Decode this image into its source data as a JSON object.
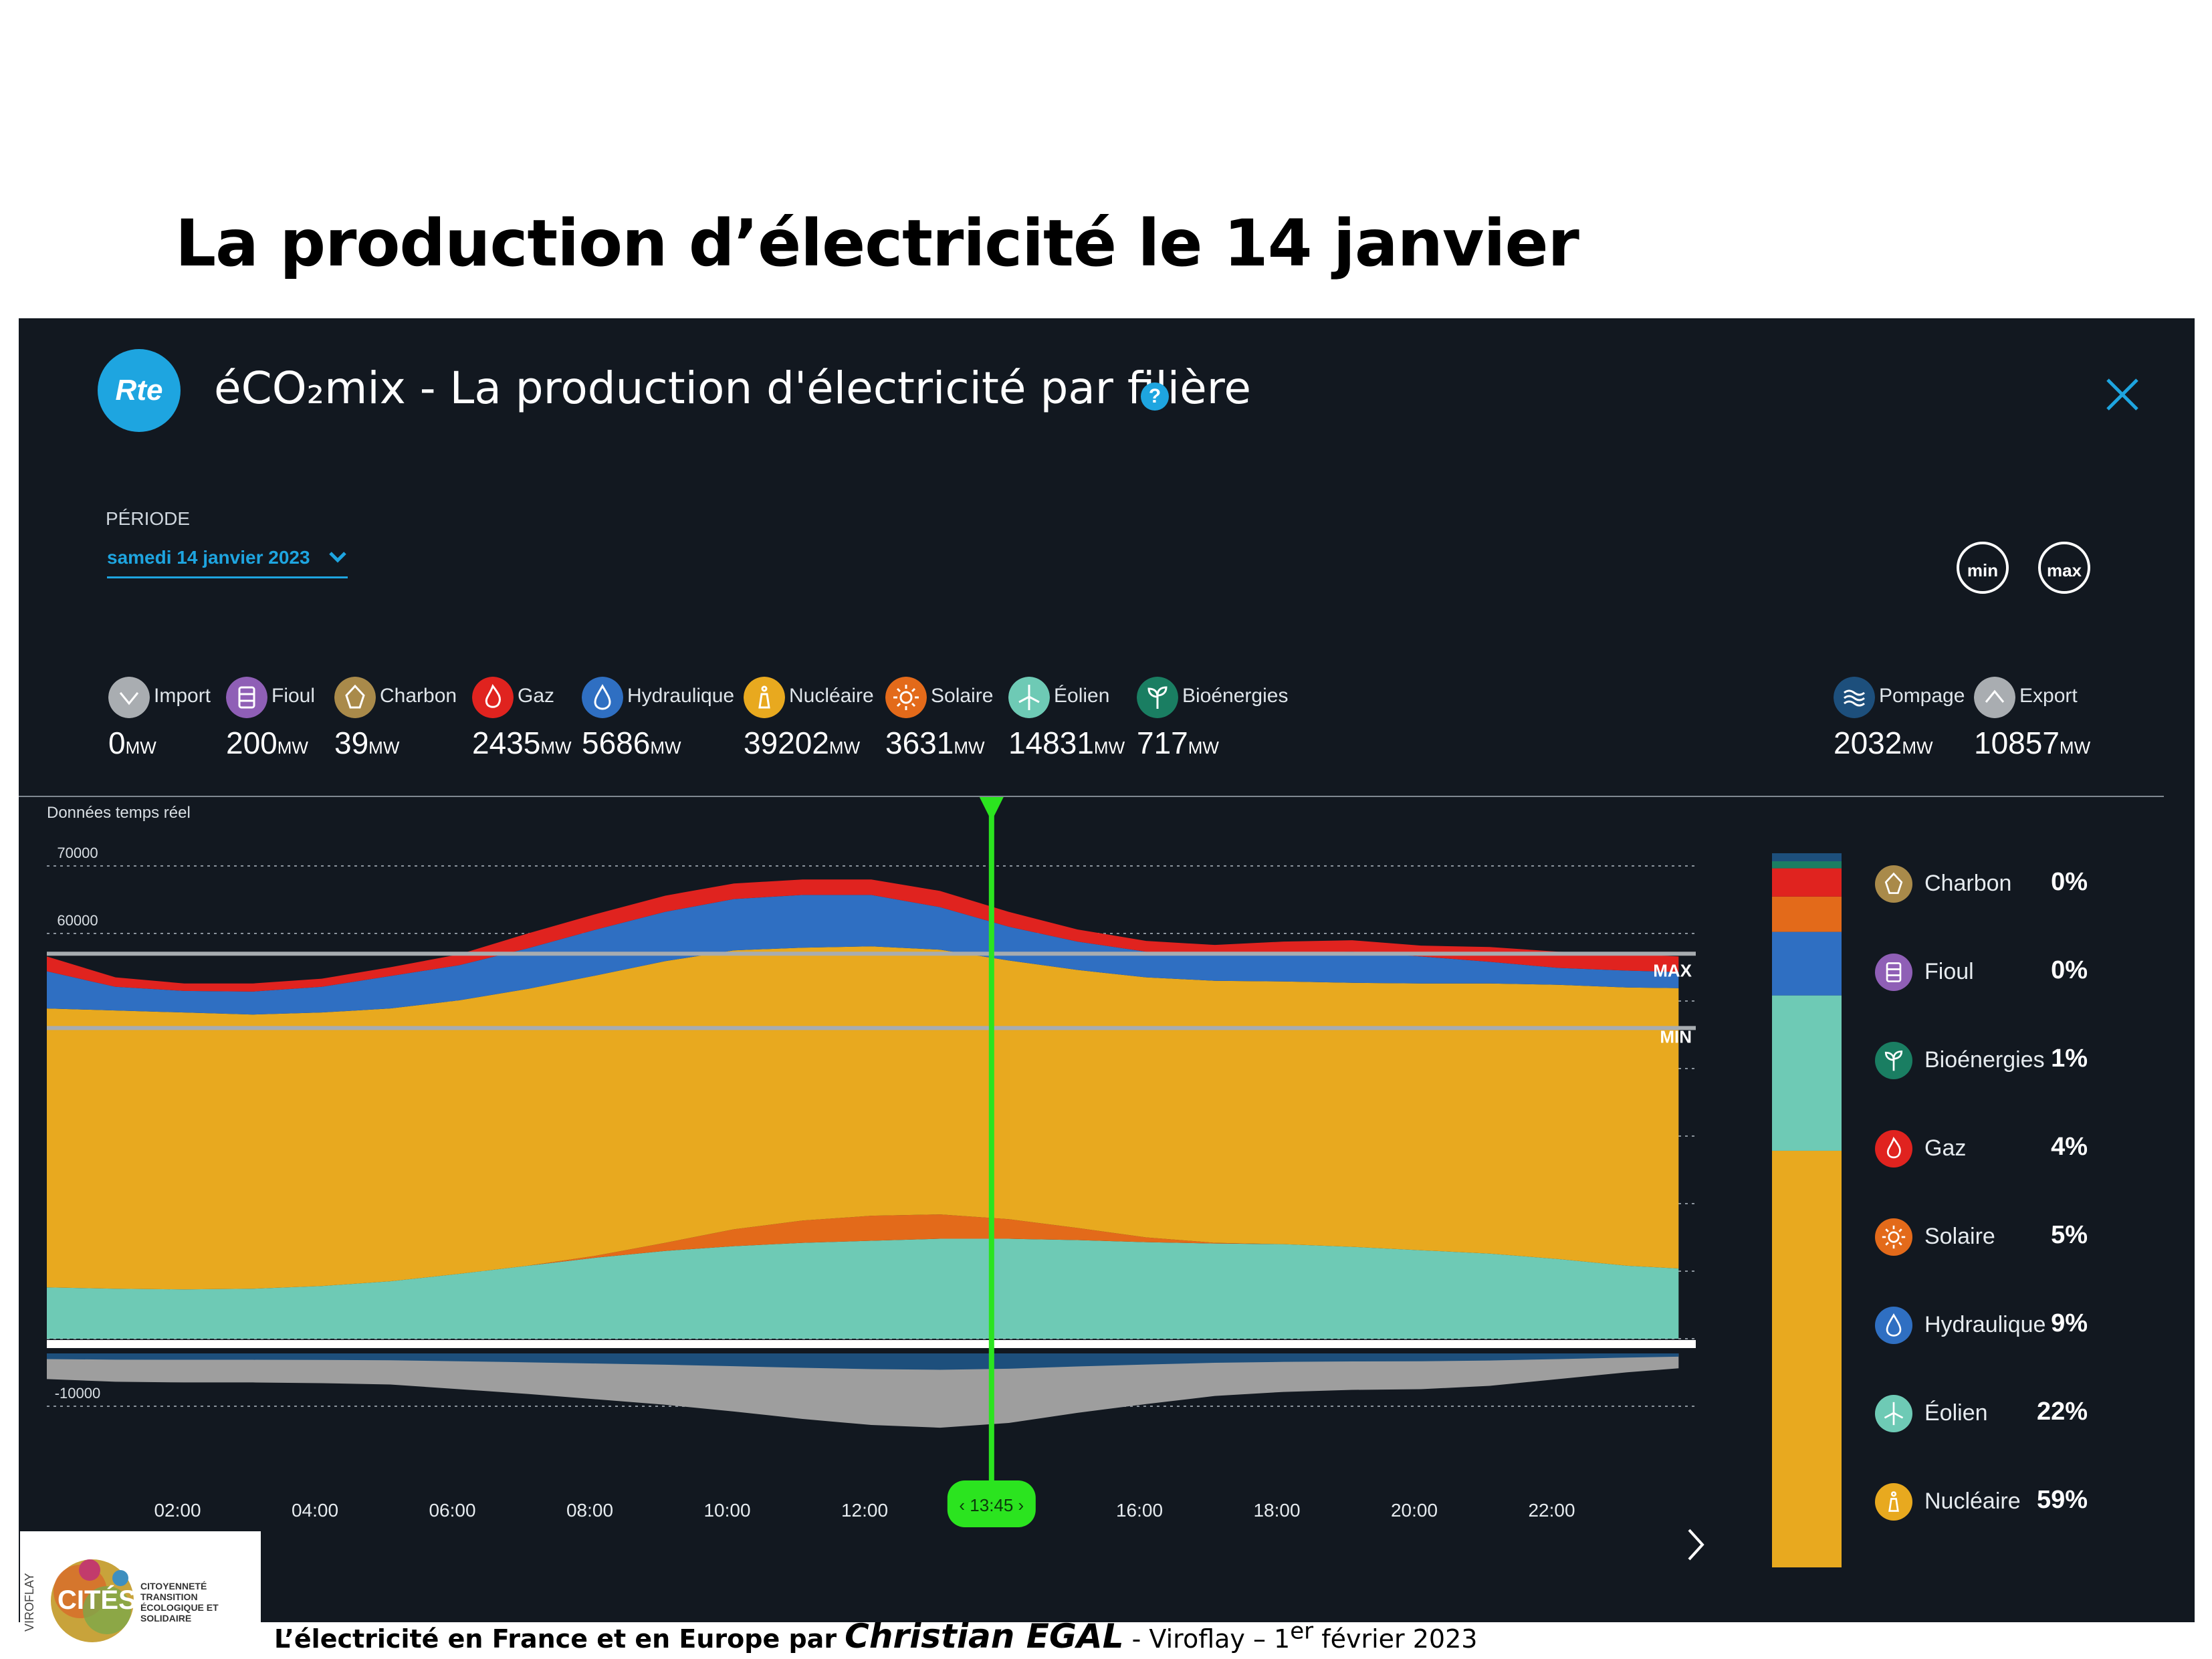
{
  "slide": {
    "title": "La production d’électricité le 14 janvier"
  },
  "app": {
    "logo_text": "Rte",
    "title": "éCO₂mix - La production d'électricité par filière",
    "help": "?"
  },
  "period": {
    "label": "PÉRIODE",
    "value": "samedi 14 janvier 2023"
  },
  "buttons": {
    "min": "min",
    "max": "max"
  },
  "legend": [
    {
      "id": "import",
      "name": "Import",
      "value": "0",
      "unit": "MW",
      "color": "#a9adb1",
      "icon": "chevron-down-icon"
    },
    {
      "id": "fioul",
      "name": "Fioul",
      "value": "200",
      "unit": "MW",
      "color": "#8f5fb6",
      "icon": "barrel-icon"
    },
    {
      "id": "charbon",
      "name": "Charbon",
      "value": "39",
      "unit": "MW",
      "color": "#a98a4a",
      "icon": "coal-icon"
    },
    {
      "id": "gaz",
      "name": "Gaz",
      "value": "2435",
      "unit": "MW",
      "color": "#e0231f",
      "icon": "flame-icon"
    },
    {
      "id": "hydraulique",
      "name": "Hydraulique",
      "value": "5686",
      "unit": "MW",
      "color": "#2f6fc2",
      "icon": "water-drop-icon"
    },
    {
      "id": "nucleaire",
      "name": "Nucléaire",
      "value": "39202",
      "unit": "MW",
      "color": "#e8a91f",
      "icon": "nuclear-plant-icon"
    },
    {
      "id": "solaire",
      "name": "Solaire",
      "value": "3631",
      "unit": "MW",
      "color": "#e36a1a",
      "icon": "sun-icon"
    },
    {
      "id": "eolien",
      "name": "Éolien",
      "value": "14831",
      "unit": "MW",
      "color": "#6ecab5",
      "icon": "wind-turbine-icon"
    },
    {
      "id": "bioenergies",
      "name": "Bioénergies",
      "value": "717",
      "unit": "MW",
      "color": "#1a7e62",
      "icon": "sprout-icon"
    }
  ],
  "legend_right": [
    {
      "id": "pompage",
      "name": "Pompage",
      "value": "2032",
      "unit": "MW",
      "color": "#1d4f7c",
      "icon": "waves-icon"
    },
    {
      "id": "export",
      "name": "Export",
      "value": "10857",
      "unit": "MW",
      "color": "#a9adb1",
      "icon": "chevron-up-icon"
    }
  ],
  "realtime_label": "Données temps réel",
  "cursor_time": "13:45",
  "max_label": "MAX",
  "min_label": "MIN",
  "chart_data": {
    "type": "area",
    "stacked": true,
    "x_unit": "hour",
    "x": [
      0,
      1,
      2,
      3,
      4,
      5,
      6,
      7,
      8,
      9,
      10,
      11,
      12,
      13,
      14,
      15,
      16,
      17,
      18,
      19,
      20,
      21,
      22,
      23,
      23.75
    ],
    "xticks": [
      "02:00",
      "04:00",
      "06:00",
      "08:00",
      "10:00",
      "12:00",
      "16:00",
      "18:00",
      "20:00",
      "22:00"
    ],
    "xtick_values": [
      2,
      4,
      6,
      8,
      10,
      12,
      16,
      18,
      20,
      22
    ],
    "yticks": [
      "70000",
      "60000",
      "50000",
      "40000",
      "30000",
      "20000",
      "10000",
      "0",
      "-10000"
    ],
    "ytick_values": [
      70000,
      60000,
      50000,
      40000,
      30000,
      20000,
      10000,
      0,
      -10000
    ],
    "ylim": [
      -13000,
      72000
    ],
    "max_line": 57000,
    "min_line": 46000,
    "series": [
      {
        "name": "Éolien",
        "color": "#6ecab5",
        "values": [
          7600,
          7400,
          7300,
          7400,
          7800,
          8500,
          9600,
          10800,
          12000,
          13000,
          13700,
          14200,
          14500,
          14800,
          14800,
          14600,
          14300,
          14100,
          14000,
          13600,
          13100,
          12600,
          11800,
          10800,
          10400
        ]
      },
      {
        "name": "Solaire",
        "color": "#e36a1a",
        "values": [
          0,
          0,
          0,
          0,
          0,
          0,
          0,
          0,
          300,
          1200,
          2500,
          3300,
          3700,
          3600,
          2900,
          1800,
          700,
          100,
          0,
          0,
          0,
          0,
          0,
          0,
          0
        ]
      },
      {
        "name": "Nucléaire",
        "color": "#e8a91f",
        "values": [
          41300,
          41200,
          41000,
          40600,
          40500,
          40400,
          40500,
          41000,
          41500,
          41700,
          41300,
          40400,
          39900,
          39200,
          38300,
          38200,
          38500,
          38800,
          38900,
          39100,
          39500,
          40000,
          40600,
          41200,
          41500
        ]
      },
      {
        "name": "Hydraulique",
        "color": "#2f6fc2",
        "values": [
          5500,
          3500,
          3200,
          3400,
          3800,
          4800,
          5200,
          6000,
          6800,
          7300,
          7600,
          7800,
          7600,
          6300,
          5000,
          4200,
          3800,
          3900,
          4200,
          4600,
          4000,
          3200,
          2500,
          2500,
          2400
        ]
      },
      {
        "name": "Gaz",
        "color": "#e0231f",
        "values": [
          2200,
          1400,
          1100,
          1200,
          1200,
          1300,
          1600,
          2200,
          2300,
          2400,
          2300,
          2300,
          2300,
          2400,
          2200,
          1800,
          1600,
          1400,
          1700,
          1700,
          1600,
          2200,
          2400,
          2500,
          2300
        ]
      },
      {
        "name": "Pompage et export",
        "color": "#9e9e9e",
        "values": [
          -3800,
          -4200,
          -4300,
          -4300,
          -4400,
          -4600,
          -5300,
          -6000,
          -6800,
          -7600,
          -8600,
          -9700,
          -10600,
          -11000,
          -10300,
          -8800,
          -7500,
          -6300,
          -5700,
          -5400,
          -5300,
          -4800,
          -3800,
          -2800,
          -2200
        ]
      }
    ],
    "mix_bar": [
      {
        "name": "Charbon",
        "pct": "0%",
        "color": "#a98a4a",
        "icon": "coal-icon"
      },
      {
        "name": "Fioul",
        "pct": "0%",
        "color": "#8f5fb6",
        "icon": "barrel-icon"
      },
      {
        "name": "Bioénergies",
        "pct": "1%",
        "color": "#1a7e62",
        "icon": "sprout-icon"
      },
      {
        "name": "Gaz",
        "pct": "4%",
        "color": "#e0231f",
        "icon": "flame-icon"
      },
      {
        "name": "Solaire",
        "pct": "5%",
        "color": "#e36a1a",
        "icon": "sun-icon"
      },
      {
        "name": "Hydraulique",
        "pct": "9%",
        "color": "#2f6fc2",
        "icon": "water-drop-icon"
      },
      {
        "name": "Éolien",
        "pct": "22%",
        "color": "#6ecab5",
        "icon": "wind-turbine-icon"
      },
      {
        "name": "Nucléaire",
        "pct": "59%",
        "color": "#e8a91f",
        "icon": "nuclear-plant-icon"
      }
    ]
  },
  "footer": {
    "logo_text": "CITÉS",
    "logo_tagline": "CITOYENNETÉ TRANSITION ÉCOLOGIQUE ET SOLIDAIRE",
    "logo_side": "VIROFLAY",
    "text_prefix": "L’électricité en France et en Europe par",
    "author": "Christian EGAL",
    "text_suffix": " - Viroflay – 1",
    "superscript": "er",
    "text_end": " février 2023"
  }
}
